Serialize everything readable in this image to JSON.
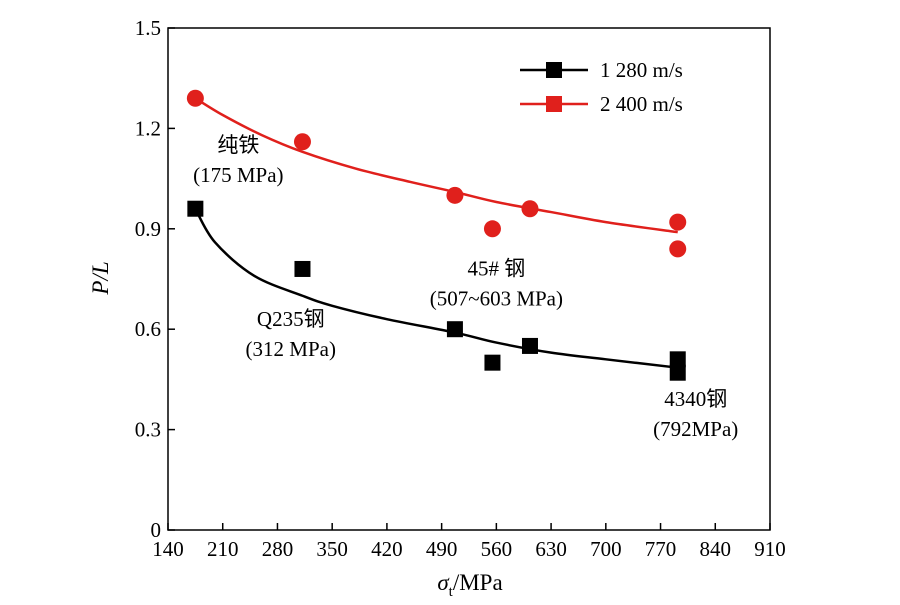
{
  "chart_data": {
    "type": "scatter",
    "xlabel": "σ",
    "xlabel_sub": "t",
    "xlabel_unit": "/MPa",
    "ylabel": "P/L",
    "xlim": [
      140,
      910
    ],
    "ylim": [
      0,
      1.5
    ],
    "xticks": [
      140,
      210,
      280,
      350,
      420,
      490,
      560,
      630,
      700,
      770,
      840,
      910
    ],
    "yticks": [
      0,
      0.3,
      0.6,
      0.9,
      1.2,
      1.5
    ],
    "ytick_labels": [
      "0",
      "0.3",
      "0.6",
      "0.9",
      "1.2",
      "1.5"
    ],
    "legend_position": "top-right",
    "grid": false,
    "series": [
      {
        "name": "1 280 m/s",
        "color": "#000000",
        "marker": "square",
        "points": [
          [
            175,
            0.96
          ],
          [
            312,
            0.78
          ],
          [
            507,
            0.6
          ],
          [
            555,
            0.5
          ],
          [
            603,
            0.55
          ],
          [
            792,
            0.51
          ],
          [
            792,
            0.47
          ]
        ],
        "fit": [
          [
            175,
            0.96
          ],
          [
            200,
            0.86
          ],
          [
            250,
            0.76
          ],
          [
            312,
            0.7
          ],
          [
            350,
            0.67
          ],
          [
            420,
            0.63
          ],
          [
            507,
            0.59
          ],
          [
            560,
            0.56
          ],
          [
            630,
            0.53
          ],
          [
            700,
            0.51
          ],
          [
            792,
            0.485
          ]
        ]
      },
      {
        "name": "2 400 m/s",
        "color": "#e0201c",
        "marker": "circle",
        "points": [
          [
            175,
            1.29
          ],
          [
            312,
            1.16
          ],
          [
            507,
            1.0
          ],
          [
            555,
            0.9
          ],
          [
            603,
            0.96
          ],
          [
            792,
            0.92
          ],
          [
            792,
            0.84
          ]
        ],
        "fit": [
          [
            175,
            1.29
          ],
          [
            210,
            1.24
          ],
          [
            260,
            1.18
          ],
          [
            312,
            1.13
          ],
          [
            380,
            1.08
          ],
          [
            450,
            1.04
          ],
          [
            507,
            1.01
          ],
          [
            560,
            0.98
          ],
          [
            630,
            0.95
          ],
          [
            700,
            0.92
          ],
          [
            792,
            0.89
          ]
        ]
      }
    ],
    "annotations": [
      {
        "lines": [
          "纯铁",
          "(175 MPa)"
        ],
        "x": 230,
        "y": 1.13
      },
      {
        "lines": [
          "Q235钢",
          "(312 MPa)"
        ],
        "x": 297,
        "y": 0.61
      },
      {
        "lines": [
          "45# 钢",
          "(507~603 MPa)"
        ],
        "x": 560,
        "y": 0.76
      },
      {
        "lines": [
          "4340钢",
          "(792MPa)"
        ],
        "x": 815,
        "y": 0.37
      }
    ]
  }
}
